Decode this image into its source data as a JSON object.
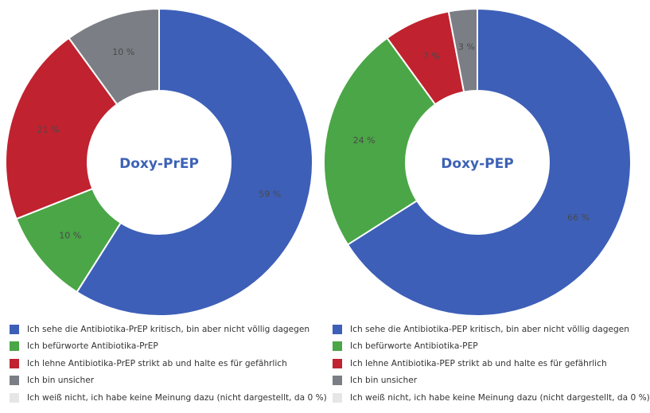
{
  "chart_data": [
    {
      "type": "pie",
      "title": "Doxy-PrEP",
      "slices": [
        {
          "label": "Ich sehe die Antibiotika-PrEP kritisch, bin aber nicht völlig dagegen",
          "value": 59,
          "value_label": "59 %",
          "color": "#3d5fb8"
        },
        {
          "label": "Ich befürworte Antibiotika-PrEP",
          "value": 10,
          "value_label": "10 %",
          "color": "#4aa646"
        },
        {
          "label": "Ich lehne Antibiotika-PrEP strikt ab und halte es für gefährlich",
          "value": 21,
          "value_label": "21 %",
          "color": "#c0222f"
        },
        {
          "label": "Ich bin unsicher",
          "value": 10,
          "value_label": "10 %",
          "color": "#7b7e84"
        },
        {
          "label": "Ich weiß nicht, ich habe keine Meinung dazu (nicht dargestellt, da 0 %)",
          "value": 0,
          "value_label": "",
          "color": "#e6e6e6"
        }
      ]
    },
    {
      "type": "pie",
      "title": "Doxy-PEP",
      "slices": [
        {
          "label": "Ich sehe die Antibiotika-PEP kritisch, bin aber nicht völlig dagegen",
          "value": 66,
          "value_label": "66 %",
          "color": "#3d5fb8"
        },
        {
          "label": "Ich befürworte Antibiotika-PEP",
          "value": 24,
          "value_label": "24 %",
          "color": "#4aa646"
        },
        {
          "label": "Ich lehne Antibiotika-PEP strikt ab und halte es für gefährlich",
          "value": 7,
          "value_label": "7 %",
          "color": "#c0222f"
        },
        {
          "label": "Ich bin unsicher",
          "value": 3,
          "value_label": "3 %",
          "color": "#7b7e84"
        },
        {
          "label": "Ich weiß nicht, ich habe keine Meinung dazu (nicht dargestellt, da 0 %)",
          "value": 0,
          "value_label": "",
          "color": "#e6e6e6"
        }
      ]
    }
  ]
}
